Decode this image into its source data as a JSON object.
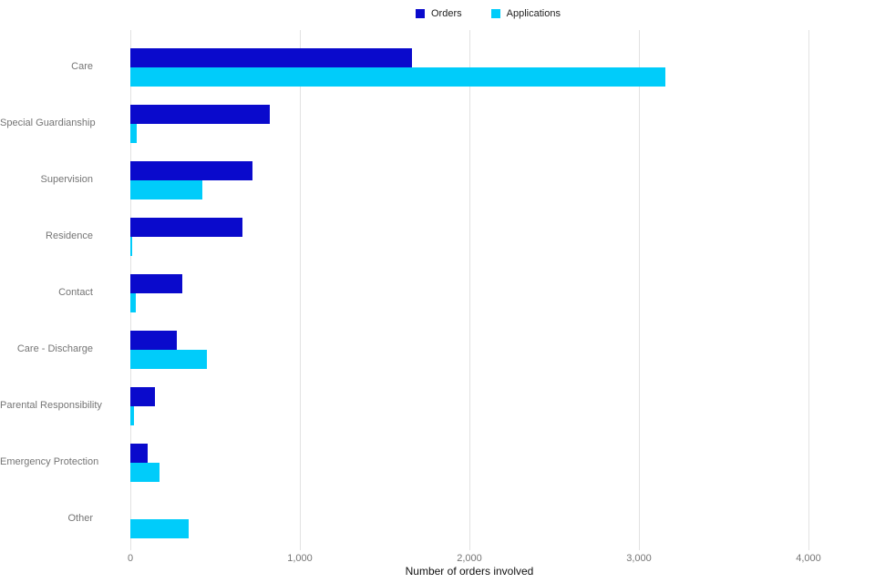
{
  "legend": {
    "items": [
      {
        "label": "Orders",
        "color": "#0a0acc"
      },
      {
        "label": "Applications",
        "color": "#00ccfa"
      }
    ]
  },
  "chart_data": {
    "type": "bar",
    "orientation": "horizontal",
    "title": "",
    "xlabel": "Number of orders involved",
    "ylabel": "",
    "xlim": [
      0,
      4000
    ],
    "grid": true,
    "legend_position": "top",
    "x_ticks": [
      {
        "label": "0",
        "value": 0
      },
      {
        "label": "1,000",
        "value": 1000
      },
      {
        "label": "2,000",
        "value": 2000
      },
      {
        "label": "3,000",
        "value": 3000
      },
      {
        "label": "4,000",
        "value": 4000
      }
    ],
    "categories": [
      "Care",
      "Special Guardianship",
      "Supervision",
      "Residence",
      "Contact",
      "Care - Discharge",
      "Parental Responsibility",
      "Emergency Protection",
      "Other"
    ],
    "series": [
      {
        "name": "Orders",
        "color": "#0a0acc",
        "values": [
          1660,
          820,
          720,
          660,
          305,
          275,
          145,
          100,
          0
        ]
      },
      {
        "name": "Applications",
        "color": "#00ccfa",
        "values": [
          3155,
          35,
          425,
          10,
          30,
          450,
          20,
          170,
          345
        ]
      }
    ]
  },
  "colors": {
    "gridline": "#e2e2e2",
    "category_label": "#757575",
    "tick_label": "#757575",
    "axis_title": "#111111",
    "background": "#ffffff"
  }
}
